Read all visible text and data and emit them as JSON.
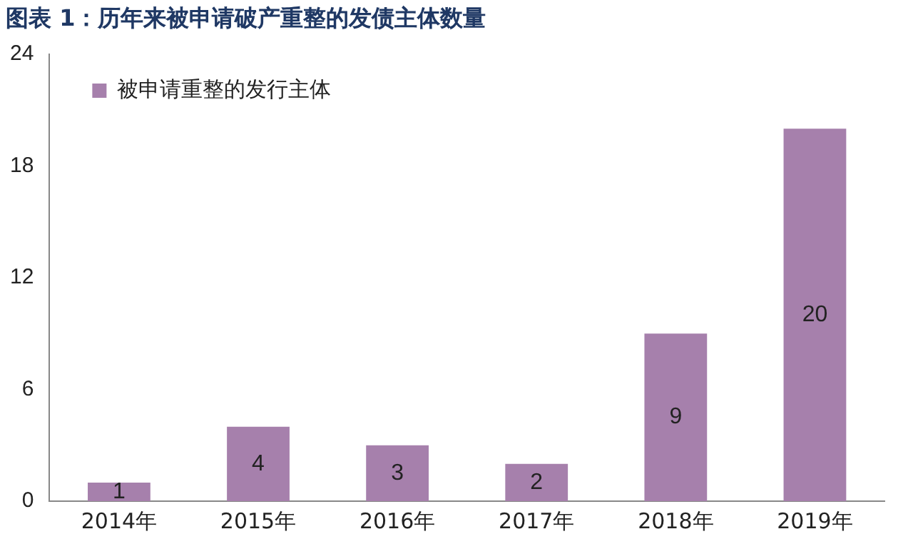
{
  "chart_data": {
    "type": "bar",
    "title": "图表 1：历年来被申请破产重整的发债主体数量",
    "categories": [
      "2014年",
      "2015年",
      "2016年",
      "2017年",
      "2018年",
      "2019年"
    ],
    "series": [
      {
        "name": "被申请重整的发行主体",
        "color": "#a680ac",
        "values": [
          1,
          4,
          3,
          2,
          9,
          20
        ]
      }
    ],
    "ylim": [
      0,
      24
    ],
    "yticks": [
      0,
      6,
      12,
      18,
      24
    ],
    "grid": false,
    "legend": "top left",
    "data_labels": true
  }
}
